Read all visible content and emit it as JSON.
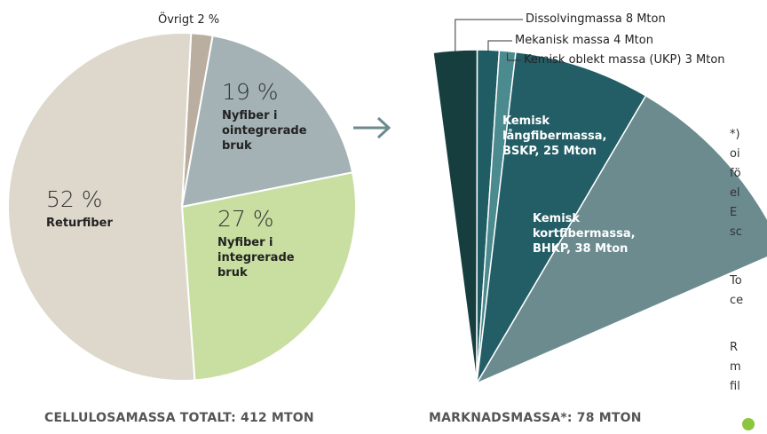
{
  "chart_data": [
    {
      "type": "pie",
      "caption": "CELLULOSAMASSA TOTALT: 412 MTON",
      "categories": [
        "Övrigt",
        "Nyfiber i ointegrerade bruk",
        "Nyfiber i integrerade bruk",
        "Returfiber"
      ],
      "values": [
        2,
        19,
        27,
        52
      ],
      "value_labels": [
        "2 %",
        "19 %",
        "27 %",
        "52 %"
      ],
      "colors": [
        "#b9ae9f",
        "#a4b2b5",
        "#c9dfa1",
        "#ddd8cb"
      ]
    },
    {
      "type": "fan",
      "caption": "MARKNADSMASSA*: 78 MTON",
      "categories": [
        "Dissolvingmassa",
        "Mekanisk massa",
        "Kemisk oblekt massa (UKP)",
        "Kemisk långfibermassa, BSKP,",
        "Kemisk kortfibermassa, BHKP,"
      ],
      "values": [
        8,
        4,
        3,
        25,
        38
      ],
      "value_labels": [
        "8 Mton",
        "4 Mton",
        "3 Mton",
        "25 Mton",
        "38 Mton"
      ],
      "colors": [
        "#163e3f",
        "#205c64",
        "#4b8a8f",
        "#235e67",
        "#6b8b8f"
      ]
    }
  ],
  "side_note": {
    "lines": [
      "*)",
      "oi",
      "fö",
      "el",
      "E",
      "sc",
      "To",
      "ce",
      "R",
      "m",
      "fil"
    ]
  }
}
